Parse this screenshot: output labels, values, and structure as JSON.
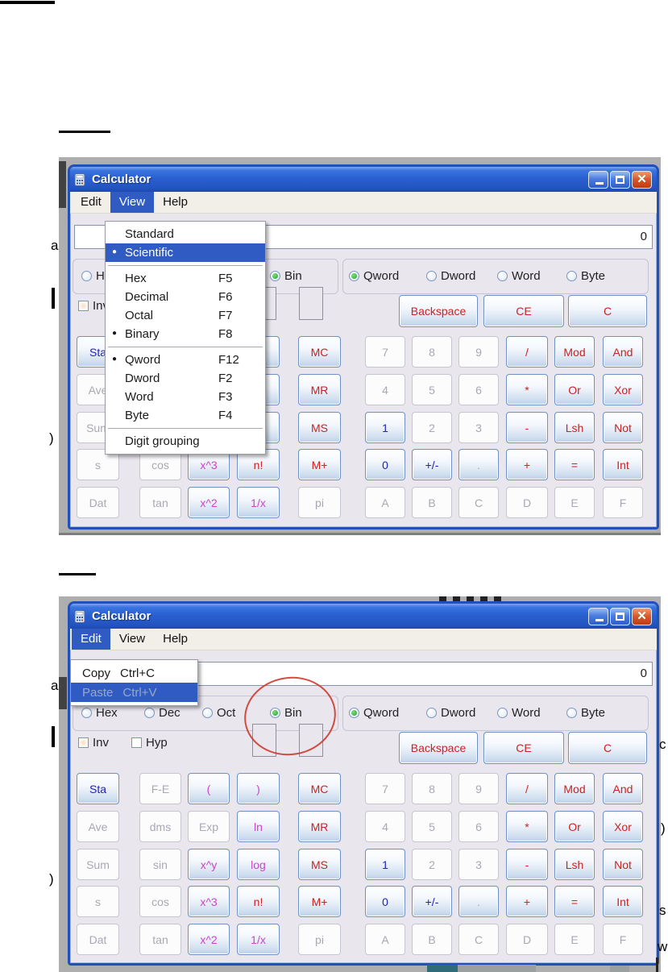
{
  "page": {
    "fragments": [
      "a",
      ")",
      "a",
      ")",
      "c",
      ")",
      "s",
      "w"
    ]
  },
  "calculator": {
    "title": "Calculator",
    "menus": [
      "Edit",
      "View",
      "Help"
    ],
    "display_value": "0",
    "window_controls": {
      "minimize": "minimize",
      "maximize": "maximize",
      "close": "close"
    },
    "base_radios": [
      {
        "label": "Hex",
        "selected": false
      },
      {
        "label": "Dec",
        "selected": false
      },
      {
        "label": "Oct",
        "selected": false
      },
      {
        "label": "Bin",
        "selected": true
      }
    ],
    "size_radios": [
      {
        "label": "Qword",
        "selected": true
      },
      {
        "label": "Dword",
        "selected": false
      },
      {
        "label": "Word",
        "selected": false
      },
      {
        "label": "Byte",
        "selected": false
      }
    ],
    "checkboxes": [
      {
        "label": "Inv",
        "checked": false
      },
      {
        "label": "Hyp",
        "checked": false
      }
    ],
    "top_buttons": [
      {
        "label": "Backspace",
        "color": "red"
      },
      {
        "label": "CE",
        "color": "red"
      },
      {
        "label": "C",
        "color": "red"
      }
    ],
    "grid": [
      [
        {
          "t": "Sta",
          "c": "blue",
          "e": true
        },
        {
          "t": "F-E",
          "c": "gray",
          "e": false
        },
        {
          "t": "(",
          "c": "magenta",
          "e": true
        },
        {
          "t": ")",
          "c": "magenta",
          "e": true
        },
        {
          "t": "MC",
          "c": "red",
          "e": true
        },
        {
          "t": "7",
          "c": "gray",
          "e": false
        },
        {
          "t": "8",
          "c": "gray",
          "e": false
        },
        {
          "t": "9",
          "c": "gray",
          "e": false
        },
        {
          "t": "/",
          "c": "red",
          "e": true
        },
        {
          "t": "Mod",
          "c": "red",
          "e": true
        },
        {
          "t": "And",
          "c": "red",
          "e": true
        }
      ],
      [
        {
          "t": "Ave",
          "c": "gray",
          "e": false
        },
        {
          "t": "dms",
          "c": "gray",
          "e": false
        },
        {
          "t": "Exp",
          "c": "gray",
          "e": false
        },
        {
          "t": "ln",
          "c": "magenta",
          "e": true
        },
        {
          "t": "MR",
          "c": "red",
          "e": true
        },
        {
          "t": "4",
          "c": "gray",
          "e": false
        },
        {
          "t": "5",
          "c": "gray",
          "e": false
        },
        {
          "t": "6",
          "c": "gray",
          "e": false
        },
        {
          "t": "*",
          "c": "red",
          "e": true
        },
        {
          "t": "Or",
          "c": "red",
          "e": true
        },
        {
          "t": "Xor",
          "c": "red",
          "e": true
        }
      ],
      [
        {
          "t": "Sum",
          "c": "gray",
          "e": false
        },
        {
          "t": "sin",
          "c": "gray",
          "e": false
        },
        {
          "t": "x^y",
          "c": "magenta",
          "e": true
        },
        {
          "t": "log",
          "c": "magenta",
          "e": true
        },
        {
          "t": "MS",
          "c": "red",
          "e": true
        },
        {
          "t": "1",
          "c": "blue",
          "e": true
        },
        {
          "t": "2",
          "c": "gray",
          "e": false
        },
        {
          "t": "3",
          "c": "gray",
          "e": false
        },
        {
          "t": "-",
          "c": "red",
          "e": true
        },
        {
          "t": "Lsh",
          "c": "red",
          "e": true
        },
        {
          "t": "Not",
          "c": "red",
          "e": true
        }
      ],
      [
        {
          "t": "s",
          "c": "gray",
          "e": false
        },
        {
          "t": "cos",
          "c": "gray",
          "e": false
        },
        {
          "t": "x^3",
          "c": "magenta",
          "e": true
        },
        {
          "t": "n!",
          "c": "red",
          "e": true
        },
        {
          "t": "M+",
          "c": "red",
          "e": true
        },
        {
          "t": "0",
          "c": "blue",
          "e": true
        },
        {
          "t": "+/-",
          "c": "blue",
          "e": true
        },
        {
          "t": ".",
          "c": "gray",
          "e": true
        },
        {
          "t": "+",
          "c": "red",
          "e": true
        },
        {
          "t": "=",
          "c": "red",
          "e": true
        },
        {
          "t": "Int",
          "c": "red",
          "e": true
        }
      ],
      [
        {
          "t": "Dat",
          "c": "gray",
          "e": false
        },
        {
          "t": "tan",
          "c": "gray",
          "e": false
        },
        {
          "t": "x^2",
          "c": "magenta",
          "e": true
        },
        {
          "t": "1/x",
          "c": "magenta",
          "e": true
        },
        {
          "t": "pi",
          "c": "gray",
          "e": false
        },
        {
          "t": "A",
          "c": "gray",
          "e": false
        },
        {
          "t": "B",
          "c": "gray",
          "e": false
        },
        {
          "t": "C",
          "c": "gray",
          "e": false
        },
        {
          "t": "D",
          "c": "gray",
          "e": false
        },
        {
          "t": "E",
          "c": "gray",
          "e": false
        },
        {
          "t": "F",
          "c": "gray",
          "e": false
        }
      ]
    ]
  },
  "shot1": {
    "active_menu": "View",
    "view_menu": {
      "items": [
        {
          "label": "Standard"
        },
        {
          "label": "Scientific",
          "bullet": true,
          "highlighted": true
        },
        {
          "separator": true
        },
        {
          "label": "Hex",
          "shortcut": "F5"
        },
        {
          "label": "Decimal",
          "shortcut": "F6"
        },
        {
          "label": "Octal",
          "shortcut": "F7"
        },
        {
          "label": "Binary",
          "shortcut": "F8",
          "bullet": true
        },
        {
          "separator": true
        },
        {
          "label": "Qword",
          "shortcut": "F12",
          "bullet": true
        },
        {
          "label": "Dword",
          "shortcut": "F2"
        },
        {
          "label": "Word",
          "shortcut": "F3"
        },
        {
          "label": "Byte",
          "shortcut": "F4"
        },
        {
          "separator": true
        },
        {
          "label": "Digit grouping"
        }
      ]
    }
  },
  "shot2": {
    "active_menu": "Edit",
    "edit_menu": {
      "items": [
        {
          "label": "Copy",
          "shortcut": "Ctrl+C",
          "enabled": true
        },
        {
          "label": "Paste",
          "shortcut": "Ctrl+V",
          "enabled": false,
          "highlighted": true
        }
      ]
    },
    "annotation": {
      "type": "ellipse",
      "target": "Bin",
      "color": "#cc3b2f"
    }
  }
}
